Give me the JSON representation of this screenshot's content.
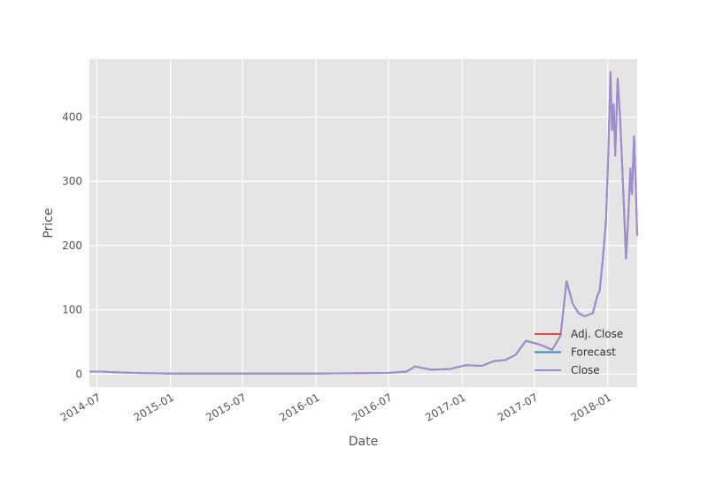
{
  "chart_data": {
    "type": "line",
    "title": "",
    "xlabel": "Date",
    "ylabel": "Price",
    "xlim": [
      "2014-06-12",
      "2018-03-16"
    ],
    "ylim": [
      -20,
      490
    ],
    "grid": true,
    "legend": "lower-right",
    "x_ticks": [
      "2014-07",
      "2015-01",
      "2015-07",
      "2016-01",
      "2016-07",
      "2017-01",
      "2017-07",
      "2018-01"
    ],
    "y_ticks": [
      0,
      100,
      200,
      300,
      400
    ],
    "colors": {
      "background": "#e5e5e5",
      "grid": "#ffffff",
      "Adj. Close": "#e24a33",
      "Forecast": "#348abd",
      "Close": "#988ed5"
    },
    "series": [
      {
        "name": "Adj. Close",
        "color": "#e24a33",
        "points": [
          [
            "2014-06-12",
            4
          ],
          [
            "2014-07-15",
            4
          ],
          [
            "2014-08-15",
            3
          ],
          [
            "2014-10-01",
            2
          ],
          [
            "2015-01-01",
            1
          ],
          [
            "2016-01-01",
            1
          ],
          [
            "2016-07-01",
            2
          ],
          [
            "2016-08-15",
            4
          ],
          [
            "2016-09-05",
            12
          ],
          [
            "2016-10-15",
            7
          ],
          [
            "2016-12-01",
            8
          ],
          [
            "2017-01-10",
            14
          ],
          [
            "2017-02-20",
            13
          ],
          [
            "2017-03-20",
            20
          ],
          [
            "2017-04-20",
            22
          ],
          [
            "2017-05-15",
            30
          ],
          [
            "2017-06-10",
            52
          ],
          [
            "2017-07-15",
            46
          ],
          [
            "2017-08-15",
            38
          ],
          [
            "2017-09-05",
            60
          ],
          [
            "2017-09-20",
            145
          ],
          [
            "2017-10-05",
            110
          ],
          [
            "2017-10-20",
            95
          ],
          [
            "2017-11-05",
            90
          ],
          [
            "2017-11-25",
            95
          ],
          [
            "2017-12-05",
            120
          ],
          [
            "2017-12-12",
            130
          ],
          [
            "2017-12-20",
            180
          ],
          [
            "2017-12-28",
            240
          ],
          [
            "2018-01-03",
            350
          ],
          [
            "2018-01-08",
            470
          ],
          [
            "2018-01-12",
            380
          ],
          [
            "2018-01-16",
            420
          ],
          [
            "2018-01-20",
            340
          ],
          [
            "2018-01-26",
            460
          ],
          [
            "2018-02-01",
            400
          ],
          [
            "2018-02-06",
            330
          ],
          [
            "2018-02-12",
            240
          ],
          [
            "2018-02-16",
            180
          ],
          [
            "2018-02-22",
            250
          ],
          [
            "2018-02-27",
            320
          ],
          [
            "2018-03-03",
            280
          ],
          [
            "2018-03-08",
            370
          ],
          [
            "2018-03-12",
            300
          ],
          [
            "2018-03-16",
            215
          ]
        ]
      },
      {
        "name": "Forecast",
        "color": "#348abd",
        "points": []
      },
      {
        "name": "Close",
        "color": "#988ed5",
        "points": [
          [
            "2014-06-12",
            4
          ],
          [
            "2014-07-15",
            4
          ],
          [
            "2014-08-15",
            3
          ],
          [
            "2014-10-01",
            2
          ],
          [
            "2015-01-01",
            1
          ],
          [
            "2016-01-01",
            1
          ],
          [
            "2016-07-01",
            2
          ],
          [
            "2016-08-15",
            4
          ],
          [
            "2016-09-05",
            12
          ],
          [
            "2016-10-15",
            7
          ],
          [
            "2016-12-01",
            8
          ],
          [
            "2017-01-10",
            14
          ],
          [
            "2017-02-20",
            13
          ],
          [
            "2017-03-20",
            20
          ],
          [
            "2017-04-20",
            22
          ],
          [
            "2017-05-15",
            30
          ],
          [
            "2017-06-10",
            52
          ],
          [
            "2017-07-15",
            46
          ],
          [
            "2017-08-15",
            38
          ],
          [
            "2017-09-05",
            60
          ],
          [
            "2017-09-20",
            145
          ],
          [
            "2017-10-05",
            110
          ],
          [
            "2017-10-20",
            95
          ],
          [
            "2017-11-05",
            90
          ],
          [
            "2017-11-25",
            95
          ],
          [
            "2017-12-05",
            120
          ],
          [
            "2017-12-12",
            130
          ],
          [
            "2017-12-20",
            180
          ],
          [
            "2017-12-28",
            240
          ],
          [
            "2018-01-03",
            350
          ],
          [
            "2018-01-08",
            470
          ],
          [
            "2018-01-12",
            380
          ],
          [
            "2018-01-16",
            420
          ],
          [
            "2018-01-20",
            340
          ],
          [
            "2018-01-26",
            460
          ],
          [
            "2018-02-01",
            400
          ],
          [
            "2018-02-06",
            330
          ],
          [
            "2018-02-12",
            240
          ],
          [
            "2018-02-16",
            180
          ],
          [
            "2018-02-22",
            250
          ],
          [
            "2018-02-27",
            320
          ],
          [
            "2018-03-03",
            280
          ],
          [
            "2018-03-08",
            370
          ],
          [
            "2018-03-12",
            300
          ],
          [
            "2018-03-16",
            215
          ]
        ]
      }
    ]
  }
}
